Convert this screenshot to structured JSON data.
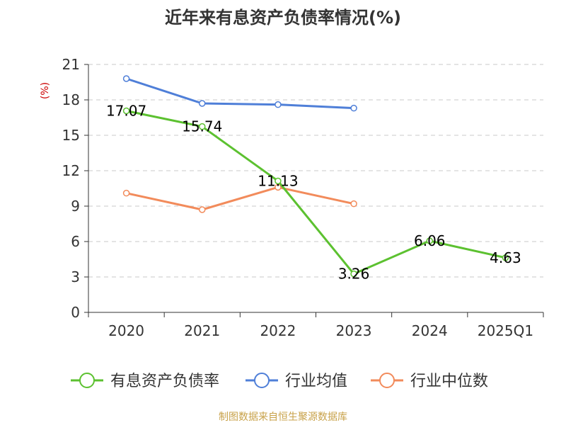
{
  "chart_data": {
    "type": "line",
    "title": "近年来有息资产负债率情况(%)",
    "ylabel": "(%)",
    "categories": [
      "2020",
      "2021",
      "2022",
      "2023",
      "2024",
      "2025Q1"
    ],
    "ylim": [
      0,
      21
    ],
    "yticks": [
      0,
      3,
      6,
      9,
      12,
      15,
      18,
      21
    ],
    "grid": true,
    "legend_position": "bottom",
    "series": [
      {
        "name": "有息资产负债率",
        "color": "#5cc130",
        "values": [
          17.07,
          15.74,
          11.13,
          3.26,
          6.06,
          4.63
        ],
        "labels": [
          "17.07",
          "15.74",
          "11.13",
          "3.26",
          "6.06",
          "4.63"
        ]
      },
      {
        "name": "行业均值",
        "color": "#4f7fd8",
        "values": [
          19.8,
          17.7,
          17.6,
          17.3,
          null,
          null
        ]
      },
      {
        "name": "行业中位数",
        "color": "#f28b5b",
        "values": [
          10.1,
          8.7,
          10.6,
          9.2,
          null,
          null
        ]
      }
    ]
  },
  "footer": {
    "source": "制图数据来自恒生聚源数据库"
  }
}
